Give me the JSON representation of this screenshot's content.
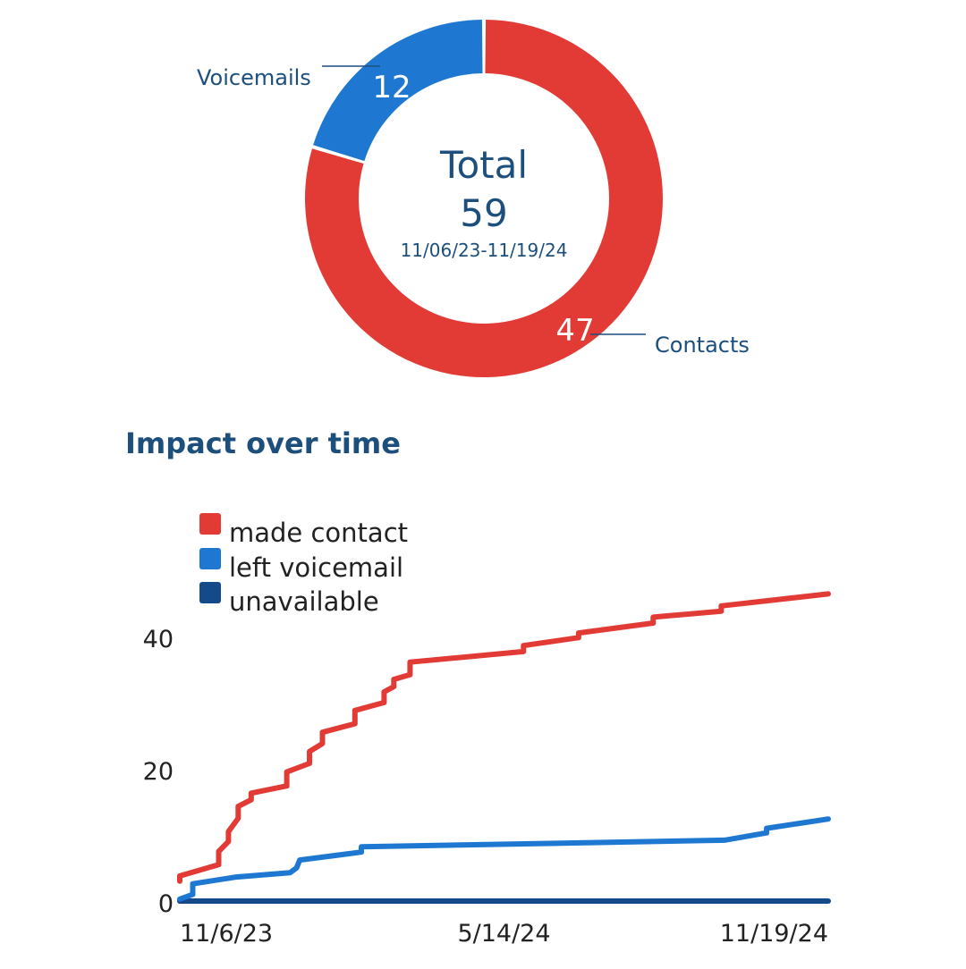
{
  "colors": {
    "contacts": "#e23b36",
    "voicemails": "#1e78d2",
    "unavailable": "#144a8a",
    "text_dark": "#1d4f7d",
    "text_tick": "#222222",
    "slice_value": "#ffffff"
  },
  "section_title": "Impact over time",
  "chart_data": [
    {
      "type": "pie",
      "variant": "donut",
      "slices": [
        {
          "name": "Contacts",
          "value": 47,
          "color": "#e23b36"
        },
        {
          "name": "Voicemails",
          "value": 12,
          "color": "#1e78d2"
        }
      ],
      "center": {
        "label": "Total",
        "value": "59",
        "date_range": "11/06/23-11/19/24"
      }
    },
    {
      "type": "line",
      "title": "Impact over time",
      "x_tick_labels": [
        "11/6/23",
        "5/14/24",
        "11/19/24"
      ],
      "x_tick_positions": [
        0,
        0.5,
        1
      ],
      "ylim": [
        0,
        47
      ],
      "y_ticks": [
        0,
        20,
        40
      ],
      "legend_placement": "top-left",
      "series": [
        {
          "name": "made contact",
          "color": "#e23b36",
          "x": [
            0,
            0,
            0.06,
            0.06,
            0.075,
            0.075,
            0.09,
            0.09,
            0.11,
            0.11,
            0.165,
            0.165,
            0.2,
            0.2,
            0.22,
            0.22,
            0.27,
            0.27,
            0.315,
            0.315,
            0.33,
            0.33,
            0.355,
            0.355,
            0.53,
            0.53,
            0.615,
            0.615,
            0.73,
            0.73,
            0.835,
            0.835,
            1
          ],
          "y": [
            3,
            3.8,
            5.5,
            7.5,
            9,
            10.5,
            12.5,
            14.3,
            15.3,
            16.3,
            17.4,
            19.5,
            20.8,
            22.6,
            23.8,
            25.5,
            26.8,
            28.8,
            30,
            31.6,
            32.4,
            33.5,
            34.2,
            36.1,
            37.7,
            38.6,
            39.8,
            40.5,
            42,
            42.9,
            43.8,
            44.6,
            46.4
          ]
        },
        {
          "name": "left voicemail",
          "color": "#1e78d2",
          "x": [
            0,
            0.02,
            0.02,
            0.085,
            0.17,
            0.18,
            0.185,
            0.28,
            0.28,
            0.84,
            0.905,
            0.905,
            1
          ],
          "y": [
            0.3,
            1,
            2.6,
            3.6,
            4.3,
            5,
            6.2,
            7.4,
            8.2,
            9.2,
            10.3,
            11,
            12.4
          ]
        },
        {
          "name": "unavailable",
          "color": "#144a8a",
          "x": [
            0,
            1
          ],
          "y": [
            0,
            0
          ]
        }
      ]
    }
  ]
}
